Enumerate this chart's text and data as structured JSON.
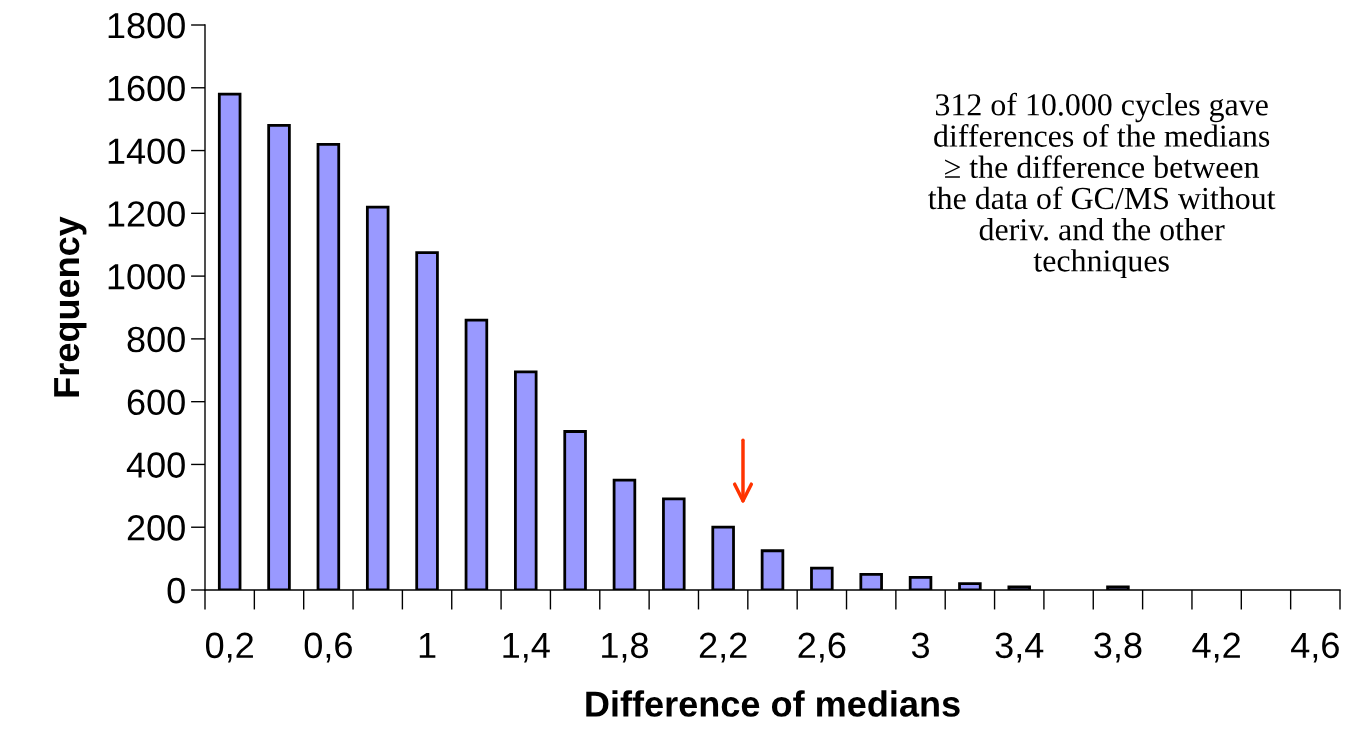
{
  "chart_data": {
    "type": "bar",
    "xlabel": "Difference of medians",
    "ylabel": "Frequency",
    "categories": [
      "0,2",
      null,
      "0,6",
      null,
      "1",
      null,
      "1,4",
      null,
      "1,8",
      null,
      "2,2",
      null,
      "2,6",
      null,
      "3",
      null,
      "3,4",
      null,
      "3,8",
      null,
      "4,2",
      null,
      "4,6"
    ],
    "values": [
      1580,
      1480,
      1420,
      1220,
      1075,
      860,
      695,
      505,
      350,
      290,
      200,
      125,
      70,
      50,
      40,
      20,
      10,
      0,
      10,
      0,
      0,
      0,
      0
    ],
    "color": "#9999ff",
    "ylim": [
      0,
      1800
    ],
    "yticks": [
      0,
      200,
      400,
      600,
      800,
      1000,
      1200,
      1400,
      1600,
      1800
    ],
    "grid": false,
    "annotations": [
      "312 of 10.000 cycles gave\ndifferences of the medians\n≥ the difference between\nthe data of GC/MS without\nderiv. and the other\ntechniques"
    ]
  }
}
